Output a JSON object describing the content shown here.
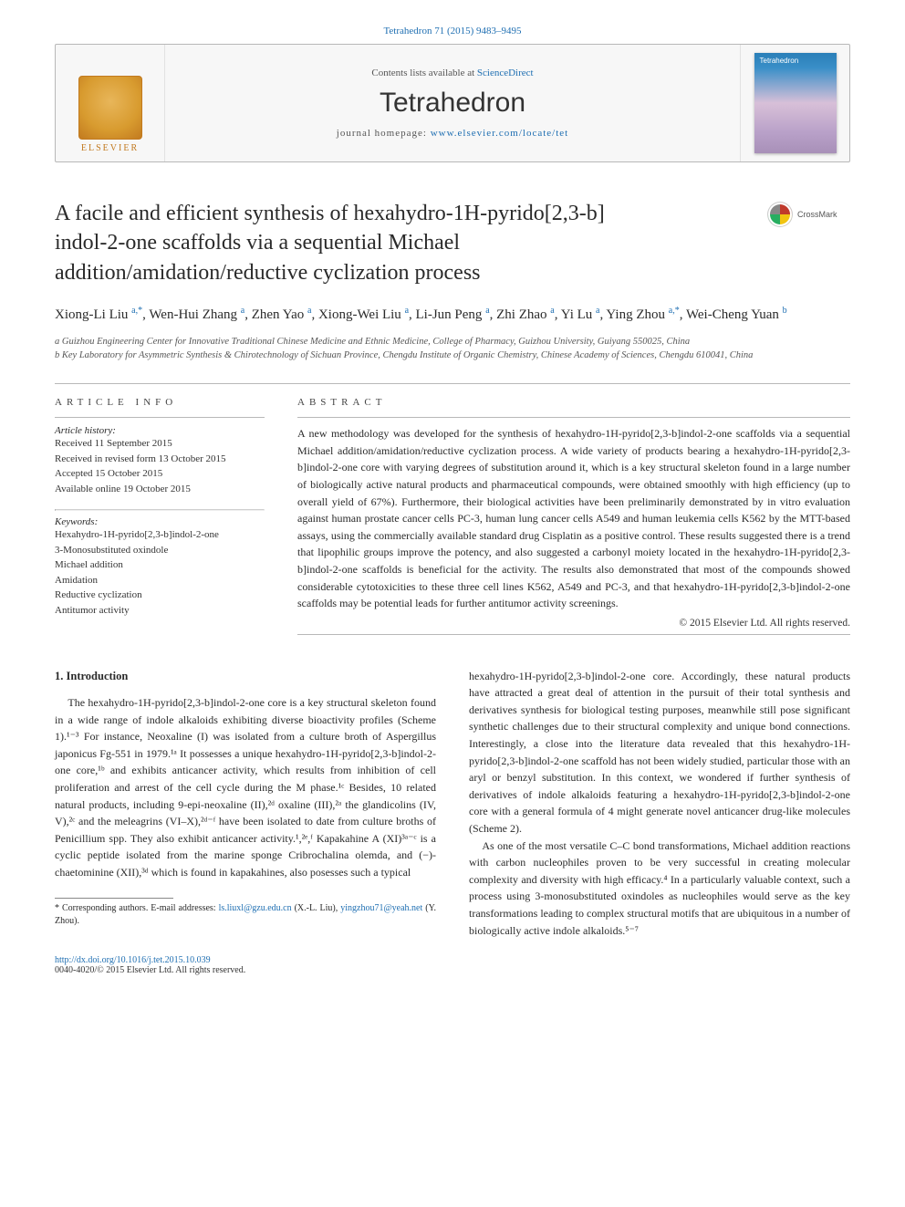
{
  "colors": {
    "link": "#1f6fb2",
    "text": "#2a2a2a",
    "border": "#b8b8b8",
    "masthead_bg": "#f7f7f7",
    "elsevier_orange": "#c27a1f",
    "cover_top": "#2a7fb8",
    "cover_mid": "#d8c0d8"
  },
  "typography": {
    "title_fontsize": 24,
    "journal_fontsize": 30,
    "body_fontsize": 12,
    "authors_fontsize": 15,
    "abstract_fontsize": 12,
    "info_fontsize": 11,
    "footnote_fontsize": 10
  },
  "citation_top": "Tetrahedron 71 (2015) 9483–9495",
  "masthead": {
    "contents_prefix": "Contents lists available at ",
    "contents_link": "ScienceDirect",
    "journal": "Tetrahedron",
    "homepage_prefix": "journal homepage: ",
    "homepage_url": "www.elsevier.com/locate/tet",
    "elsevier_word": "ELSEVIER",
    "cover_word": "Tetrahedron"
  },
  "crossmark_label": "CrossMark",
  "title_lines": [
    "A facile and efficient synthesis of hexahydro-1H-pyrido[2,3-b]",
    "indol-2-one scaffolds via a sequential Michael",
    "addition/amidation/reductive cyclization process"
  ],
  "authors_html": "Xiong-Li Liu <span class='sup'>a,*</span>, Wen-Hui Zhang <span class='sup'>a</span>, Zhen Yao <span class='sup'>a</span>, Xiong-Wei Liu <span class='sup'>a</span>, Li-Jun Peng <span class='sup'>a</span>, Zhi Zhao <span class='sup'>a</span>, Yi Lu <span class='sup'>a</span>, Ying Zhou <span class='sup'>a,*</span>, Wei-Cheng Yuan <span class='sup'>b</span>",
  "affiliations": [
    "a Guizhou Engineering Center for Innovative Traditional Chinese Medicine and Ethnic Medicine, College of Pharmacy, Guizhou University, Guiyang 550025, China",
    "b Key Laboratory for Asymmetric Synthesis & Chirotechnology of Sichuan Province, Chengdu Institute of Organic Chemistry, Chinese Academy of Sciences, Chengdu 610041, China"
  ],
  "article_info": {
    "heading": "ARTICLE INFO",
    "history_label": "Article history:",
    "history": [
      "Received 11 September 2015",
      "Received in revised form 13 October 2015",
      "Accepted 15 October 2015",
      "Available online 19 October 2015"
    ],
    "keywords_label": "Keywords:",
    "keywords": [
      "Hexahydro-1H-pyrido[2,3-b]indol-2-one",
      "3-Monosubstituted oxindole",
      "Michael addition",
      "Amidation",
      "Reductive cyclization",
      "Antitumor activity"
    ]
  },
  "abstract": {
    "heading": "ABSTRACT",
    "text": "A new methodology was developed for the synthesis of hexahydro-1H-pyrido[2,3-b]indol-2-one scaffolds via a sequential Michael addition/amidation/reductive cyclization process. A wide variety of products bearing a hexahydro-1H-pyrido[2,3-b]indol-2-one core with varying degrees of substitution around it, which is a key structural skeleton found in a large number of biologically active natural products and pharmaceutical compounds, were obtained smoothly with high efficiency (up to overall yield of 67%). Furthermore, their biological activities have been preliminarily demonstrated by in vitro evaluation against human prostate cancer cells PC-3, human lung cancer cells A549 and human leukemia cells K562 by the MTT-based assays, using the commercially available standard drug Cisplatin as a positive control. These results suggested there is a trend that lipophilic groups improve the potency, and also suggested a carbonyl moiety located in the hexahydro-1H-pyrido[2,3-b]indol-2-one scaffolds is beneficial for the activity. The results also demonstrated that most of the compounds showed considerable cytotoxicities to these three cell lines K562, A549 and PC-3, and that hexahydro-1H-pyrido[2,3-b]indol-2-one scaffolds may be potential leads for further antitumor activity screenings.",
    "copyright": "© 2015 Elsevier Ltd. All rights reserved."
  },
  "section1": {
    "heading": "1. Introduction",
    "para1": "The hexahydro-1H-pyrido[2,3-b]indol-2-one core is a key structural skeleton found in a wide range of indole alkaloids exhibiting diverse bioactivity profiles (Scheme 1).¹⁻³ For instance, Neoxaline (I) was isolated from a culture broth of Aspergillus japonicus Fg-551 in 1979.¹ᵃ It possesses a unique hexahydro-1H-pyrido[2,3-b]indol-2-one core,¹ᵇ and exhibits anticancer activity, which results from inhibition of cell proliferation and arrest of the cell cycle during the M phase.¹ᶜ Besides, 10 related natural products, including 9-epi-neoxaline (II),²ᵈ oxaline (III),²ᵃ the glandicolins (IV, V),²ᶜ and the meleagrins (VI–X),²ᵈ⁻ᶠ have been isolated to date from culture broths of Penicillium spp. They also exhibit anticancer activity.¹,²ᵉ,ᶠ Kapakahine A (XI)³ᵃ⁻ᶜ is a cyclic peptide isolated from the marine sponge Cribrochalina olemda, and (−)-chaetominine (XII),³ᵈ which is found in kapakahines, also posesses such a typical",
    "para2_right": "hexahydro-1H-pyrido[2,3-b]indol-2-one core. Accordingly, these natural products have attracted a great deal of attention in the pursuit of their total synthesis and derivatives synthesis for biological testing purposes, meanwhile still pose significant synthetic challenges due to their structural complexity and unique bond connections. Interestingly, a close into the literature data revealed that this hexahydro-1H-pyrido[2,3-b]indol-2-one scaffold has not been widely studied, particular those with an aryl or benzyl substitution. In this context, we wondered if further synthesis of derivatives of indole alkaloids featuring a hexahydro-1H-pyrido[2,3-b]indol-2-one core with a general formula of 4 might generate novel anticancer drug-like molecules (Scheme 2).",
    "para3_right": "As one of the most versatile C–C bond transformations, Michael addition reactions with carbon nucleophiles proven to be very successful in creating molecular complexity and diversity with high efficacy.⁴ In a particularly valuable context, such a process using 3-monosubstituted oxindoles as nucleophiles would serve as the key transformations leading to complex structural motifs that are ubiquitous in a number of biologically active indole alkaloids.⁵⁻⁷"
  },
  "footnote": {
    "text_prefix": "* Corresponding authors. E-mail addresses: ",
    "email1": "ls.liuxl@gzu.edu.cn",
    "name1": " (X.-L. Liu), ",
    "email2": "yingzhou71@yeah.net",
    "name2": " (Y. Zhou)."
  },
  "footer": {
    "doi": "http://dx.doi.org/10.1016/j.tet.2015.10.039",
    "issn_line": "0040-4020/© 2015 Elsevier Ltd. All rights reserved."
  }
}
